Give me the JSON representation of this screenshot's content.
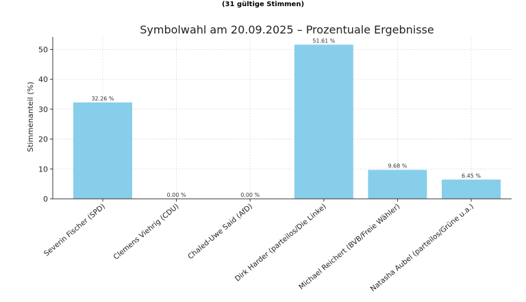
{
  "chart_data": {
    "type": "bar",
    "supertitle": "(31 gültige Stimmen)",
    "title": "Symbolwahl am 20.09.2025 – Prozentuale Ergebnisse",
    "ylabel": "Stimmenanteil (%)",
    "xlabel": "",
    "ylim": [
      0,
      54.2
    ],
    "yticks": [
      0,
      10,
      20,
      30,
      40,
      50
    ],
    "grid": true,
    "bar_color": "#87CEEB",
    "categories": [
      "Severin Fischer (SPD)",
      "Clemens Viehrig (CDU)",
      "Chaled-Uwe Said (AfD)",
      "Dirk Harder (parteilos/Die Linke)",
      "Michael Reichert (BVB/Freie Wähler)",
      "Natasha Aubel (parteilos/Grüne u.a.)"
    ],
    "values": [
      32.26,
      0.0,
      0.0,
      51.61,
      9.68,
      6.45
    ],
    "value_labels": [
      "32.26 %",
      "0.00 %",
      "0.00 %",
      "51.61 %",
      "9.68 %",
      "6.45 %"
    ]
  }
}
